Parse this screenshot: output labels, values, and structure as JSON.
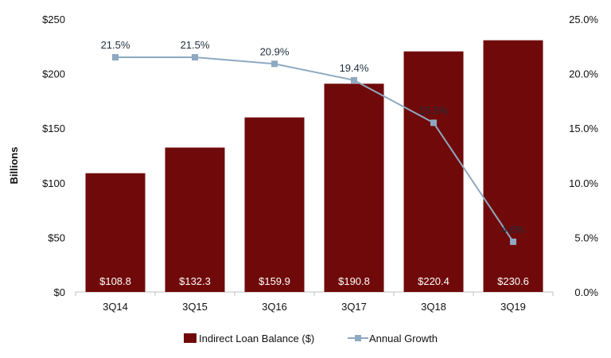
{
  "chart_data": {
    "type": "bar",
    "title": "",
    "xlabel": "",
    "ylabel": "Billions",
    "categories": [
      "3Q14",
      "3Q15",
      "3Q16",
      "3Q17",
      "3Q18",
      "3Q19"
    ],
    "ylim": [
      0,
      250
    ],
    "y2lim": [
      0,
      25
    ],
    "yticks": [
      "$0",
      "$50",
      "$100",
      "$150",
      "$200",
      "$250"
    ],
    "y2ticks": [
      "0.0%",
      "5.0%",
      "10.0%",
      "15.0%",
      "20.0%",
      "25.0%"
    ],
    "series": [
      {
        "name": "Indirect Loan Balance ($)",
        "type": "bar",
        "axis": "left",
        "values": [
          108.8,
          132.3,
          159.9,
          190.8,
          220.4,
          230.6
        ],
        "labels": [
          "$108.8",
          "$132.3",
          "$159.9",
          "$190.8",
          "$220.4",
          "$230.6"
        ]
      },
      {
        "name": "Annual Growth",
        "type": "line",
        "axis": "right",
        "values": [
          21.5,
          21.5,
          20.9,
          19.4,
          15.5,
          4.6
        ],
        "labels": [
          "21.5%",
          "21.5%",
          "20.9%",
          "19.4%",
          "15.5%",
          "4.6%"
        ]
      }
    ],
    "colors": {
      "bar": "#700a0a",
      "line": "#8ea9c1",
      "marker": "#8ea9c1"
    },
    "legend_position": "bottom"
  }
}
